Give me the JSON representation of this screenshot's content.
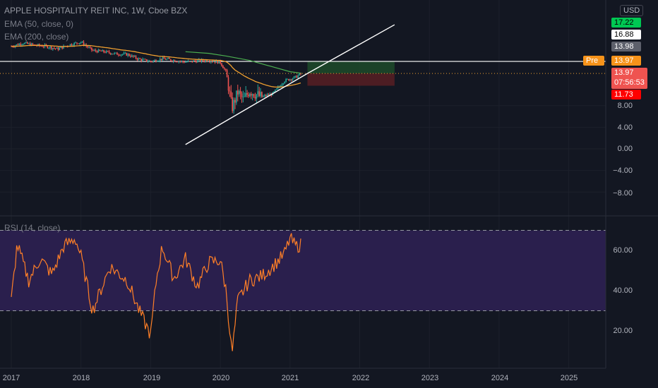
{
  "header": {
    "title": "APPLE HOSPITALITY REIT INC, 1W, Cboe BZX",
    "ema50": "EMA (50, close, 0)",
    "ema200": "EMA (200, close)",
    "rsi": "RSI (14, close)"
  },
  "currency": "USD",
  "badges": {
    "b1": "17.22",
    "b2": "16.88",
    "b3": "13.98",
    "pre_label": "Pre",
    "pre_value": "13.97",
    "last_price": "13.97",
    "countdown": "07:56:53",
    "b4": "11.73"
  },
  "colors": {
    "up": "#26a69a",
    "down": "#ef5350",
    "ema50": "#f0a030",
    "ema200": "#4caf50",
    "rsi": "#ff7f27",
    "rsi_band": "#2a1f4d",
    "target_zone": "#1e4d2b",
    "stop_zone": "#5c1f24"
  },
  "chart_data": [
    {
      "type": "candlestick",
      "x_range": [
        "2017-01",
        "2025-06"
      ],
      "y_ticks": [
        "8.00",
        "4.00",
        "0.00",
        "−4.00",
        "−8.00"
      ],
      "x_ticks": [
        "2017",
        "2018",
        "2019",
        "2020",
        "2021",
        "2022",
        "2023",
        "2024",
        "2025"
      ],
      "price_series": {
        "date": [
          "2017-01",
          "2017-03",
          "2017-05",
          "2017-07",
          "2017-09",
          "2017-11",
          "2018-01",
          "2018-03",
          "2018-05",
          "2018-07",
          "2018-09",
          "2018-11",
          "2019-01",
          "2019-03",
          "2019-05",
          "2019-07",
          "2019-09",
          "2019-11",
          "2020-01",
          "2020-02",
          "2020-03",
          "2020-04",
          "2020-05",
          "2020-06",
          "2020-08",
          "2020-10",
          "2020-12",
          "2021-02",
          "2021-03"
        ],
        "close": [
          19.0,
          19.6,
          19.2,
          19.0,
          18.5,
          19.3,
          19.8,
          18.2,
          18.0,
          17.6,
          17.5,
          16.6,
          16.2,
          16.7,
          16.4,
          16.1,
          16.3,
          16.4,
          16.0,
          14.2,
          7.5,
          10.5,
          9.0,
          10.8,
          9.6,
          10.2,
          12.6,
          13.3,
          13.97
        ]
      },
      "ema_200": {
        "date": [
          "2019-07",
          "2019-11",
          "2020-02",
          "2020-06",
          "2020-10",
          "2021-01",
          "2021-03"
        ],
        "value": [
          18.0,
          17.7,
          17.2,
          16.4,
          15.2,
          14.3,
          14.0
        ]
      },
      "levels": [
        {
          "kind": "horizontal",
          "value": 16.2
        },
        {
          "kind": "dotted",
          "value": 13.97
        }
      ],
      "trendlines": [
        {
          "from": [
            "2019-07",
            0.8
          ],
          "to": [
            "2021-04",
            13.97
          ]
        },
        {
          "from": [
            "2021-04",
            13.97
          ],
          "to": [
            "2022-07",
            23.0
          ]
        }
      ],
      "position": {
        "entry": 13.97,
        "target": 16.2,
        "stop": 11.7
      }
    },
    {
      "type": "line",
      "name": "RSI (14, close)",
      "y_ticks": [
        "60.00",
        "40.00",
        "20.00"
      ],
      "band": [
        30,
        70
      ],
      "date": [
        "2017-01",
        "2017-02",
        "2017-04",
        "2017-06",
        "2017-08",
        "2017-10",
        "2017-12",
        "2018-01",
        "2018-03",
        "2018-06",
        "2018-09",
        "2018-11",
        "2019-01",
        "2019-02",
        "2019-03",
        "2019-05",
        "2019-07",
        "2019-09",
        "2019-11",
        "2020-01",
        "2020-02",
        "2020-03",
        "2020-04",
        "2020-06",
        "2020-08",
        "2020-10",
        "2020-12",
        "2021-01",
        "2021-02",
        "2021-03"
      ],
      "value": [
        35,
        63,
        45,
        56,
        48,
        62,
        66,
        57,
        30,
        52,
        45,
        30,
        18,
        46,
        62,
        46,
        56,
        42,
        54,
        55,
        40,
        8,
        35,
        45,
        47,
        52,
        58,
        66,
        62,
        63
      ]
    }
  ]
}
